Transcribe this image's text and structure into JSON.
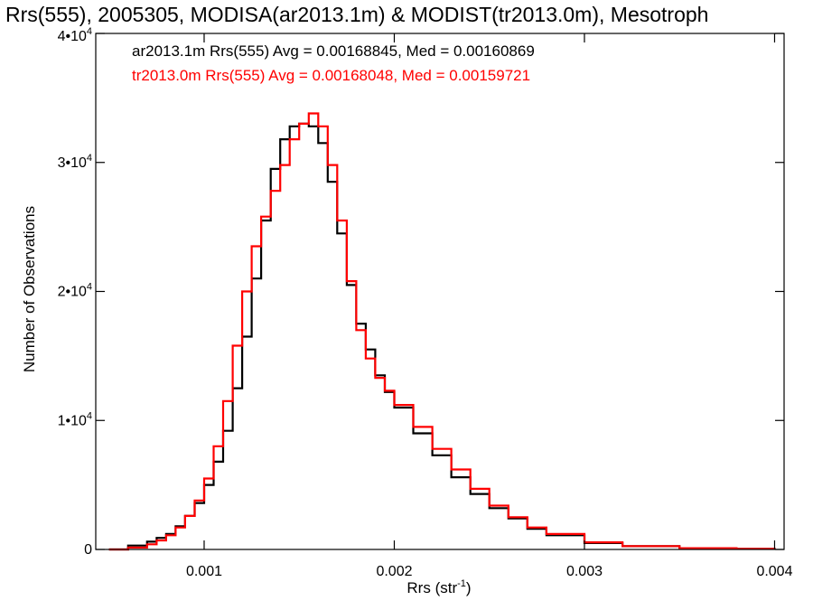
{
  "chart_data": {
    "type": "line",
    "title": "Rrs(555), 2005305, MODISA(ar2013.1m) & MODIST(tr2013.0m), Mesotroph",
    "xlabel": "Rrs (str",
    "xlabel_sup": "-1",
    "xlabel_close": ")",
    "ylabel": "Number of Observations",
    "xlim": [
      0.00043,
      0.00405
    ],
    "ylim": [
      0,
      40000
    ],
    "x_ticks": [
      {
        "value": 0.001,
        "label": "0.001"
      },
      {
        "value": 0.002,
        "label": "0.002"
      },
      {
        "value": 0.003,
        "label": "0.003"
      },
      {
        "value": 0.004,
        "label": "0.004"
      }
    ],
    "y_ticks": [
      {
        "value": 0,
        "base": "0",
        "exp": ""
      },
      {
        "value": 10000,
        "base": "1•10",
        "exp": "4"
      },
      {
        "value": 20000,
        "base": "2•10",
        "exp": "4"
      },
      {
        "value": 30000,
        "base": "3•10",
        "exp": "4"
      },
      {
        "value": 40000,
        "base": "4•10",
        "exp": "4"
      }
    ],
    "grid": false,
    "legend": "top-left",
    "series": [
      {
        "name": "ar2013.1m Rrs(555) Avg = 0.00168845, Med = 0.00160869",
        "color": "#000000",
        "x": [
          0.0005,
          0.0006,
          0.0007,
          0.00075,
          0.0008,
          0.00085,
          0.0009,
          0.00095,
          0.001,
          0.00105,
          0.0011,
          0.00115,
          0.0012,
          0.00125,
          0.0013,
          0.00135,
          0.0014,
          0.00145,
          0.0015,
          0.00155,
          0.0016,
          0.00165,
          0.0017,
          0.00175,
          0.0018,
          0.00185,
          0.0019,
          0.00195,
          0.002,
          0.0021,
          0.0022,
          0.0023,
          0.0024,
          0.0025,
          0.0026,
          0.0027,
          0.0028,
          0.003,
          0.0032,
          0.0035,
          0.0038,
          0.004
        ],
        "y": [
          0,
          300,
          600,
          900,
          1200,
          1800,
          2600,
          3600,
          5000,
          6800,
          9200,
          12500,
          16500,
          21000,
          25500,
          29500,
          31800,
          32800,
          33000,
          32800,
          31500,
          28500,
          24500,
          20500,
          17500,
          15500,
          13500,
          12200,
          11000,
          9000,
          7300,
          5600,
          4300,
          3200,
          2400,
          1600,
          1100,
          500,
          250,
          100,
          40,
          20
        ]
      },
      {
        "name": "tr2013.0m Rrs(555) Avg = 0.00168048, Med = 0.00159721",
        "color": "#ff0000",
        "x": [
          0.0005,
          0.0006,
          0.0007,
          0.00075,
          0.0008,
          0.00085,
          0.0009,
          0.00095,
          0.001,
          0.00105,
          0.0011,
          0.00115,
          0.0012,
          0.00125,
          0.0013,
          0.00135,
          0.0014,
          0.00145,
          0.0015,
          0.00155,
          0.0016,
          0.00165,
          0.0017,
          0.00175,
          0.0018,
          0.00185,
          0.0019,
          0.00195,
          0.002,
          0.0021,
          0.0022,
          0.0023,
          0.0024,
          0.0025,
          0.0026,
          0.0027,
          0.0028,
          0.003,
          0.0032,
          0.0035,
          0.0038,
          0.004
        ],
        "y": [
          0,
          150,
          400,
          700,
          1100,
          1700,
          2600,
          3800,
          5500,
          8000,
          11500,
          15800,
          20000,
          23500,
          25800,
          27800,
          29800,
          31800,
          33000,
          33800,
          32800,
          29800,
          25500,
          20800,
          17000,
          14800,
          13300,
          12300,
          11200,
          9500,
          7800,
          6200,
          4700,
          3400,
          2500,
          1700,
          1200,
          550,
          260,
          100,
          40,
          20
        ]
      }
    ]
  }
}
